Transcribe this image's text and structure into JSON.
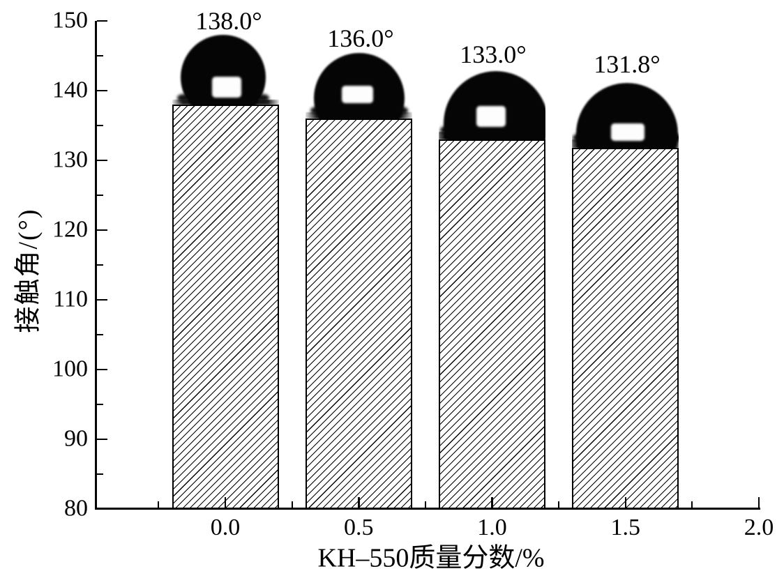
{
  "figure": {
    "background": "#ffffff",
    "ink_color": "#000000"
  },
  "chart_data": {
    "type": "bar",
    "title": "",
    "categories": [
      0.0,
      0.5,
      1.0,
      1.5
    ],
    "values": [
      138.0,
      136.0,
      133.0,
      131.8
    ],
    "bar_value_labels": [
      "138.0°",
      "136.0°",
      "133.0°",
      "131.8°"
    ],
    "xlabel": "KH–550质量分数/%",
    "ylabel": "接触角/(°)",
    "xlim": [
      -0.49,
      2.0
    ],
    "ylim": [
      80,
      150
    ],
    "x_tick_labels": [
      "0.0",
      "0.5",
      "1.0",
      "1.5",
      "2.0"
    ],
    "x_tick_values": [
      0,
      0.5,
      1,
      1.5,
      2
    ],
    "x_minor_tick_values": [
      -0.25,
      0.25,
      0.75,
      1.25,
      1.75
    ],
    "y_tick_labels": [
      "80",
      "90",
      "100",
      "110",
      "120",
      "130",
      "140",
      "150"
    ],
    "y_tick_values": [
      80,
      90,
      100,
      110,
      120,
      130,
      140,
      150
    ],
    "y_minor_tick_values": [
      85,
      95,
      105,
      115,
      125,
      135,
      145
    ],
    "bar_width": 0.4,
    "bar_style": {
      "fill": "#ffffff",
      "hatch": "diagonal-forward",
      "edge": "#000000"
    },
    "grid": false,
    "legend": null,
    "annotations": [
      {
        "type": "photo",
        "name": "water-droplet-photo",
        "above_bar_category": 0.0,
        "contact_angle": "138.0°"
      },
      {
        "type": "photo",
        "name": "water-droplet-photo",
        "above_bar_category": 0.5,
        "contact_angle": "136.0°"
      },
      {
        "type": "photo",
        "name": "water-droplet-photo",
        "above_bar_category": 1.0,
        "contact_angle": "133.0°"
      },
      {
        "type": "photo",
        "name": "water-droplet-photo",
        "above_bar_category": 1.5,
        "contact_angle": "131.8°"
      }
    ]
  }
}
